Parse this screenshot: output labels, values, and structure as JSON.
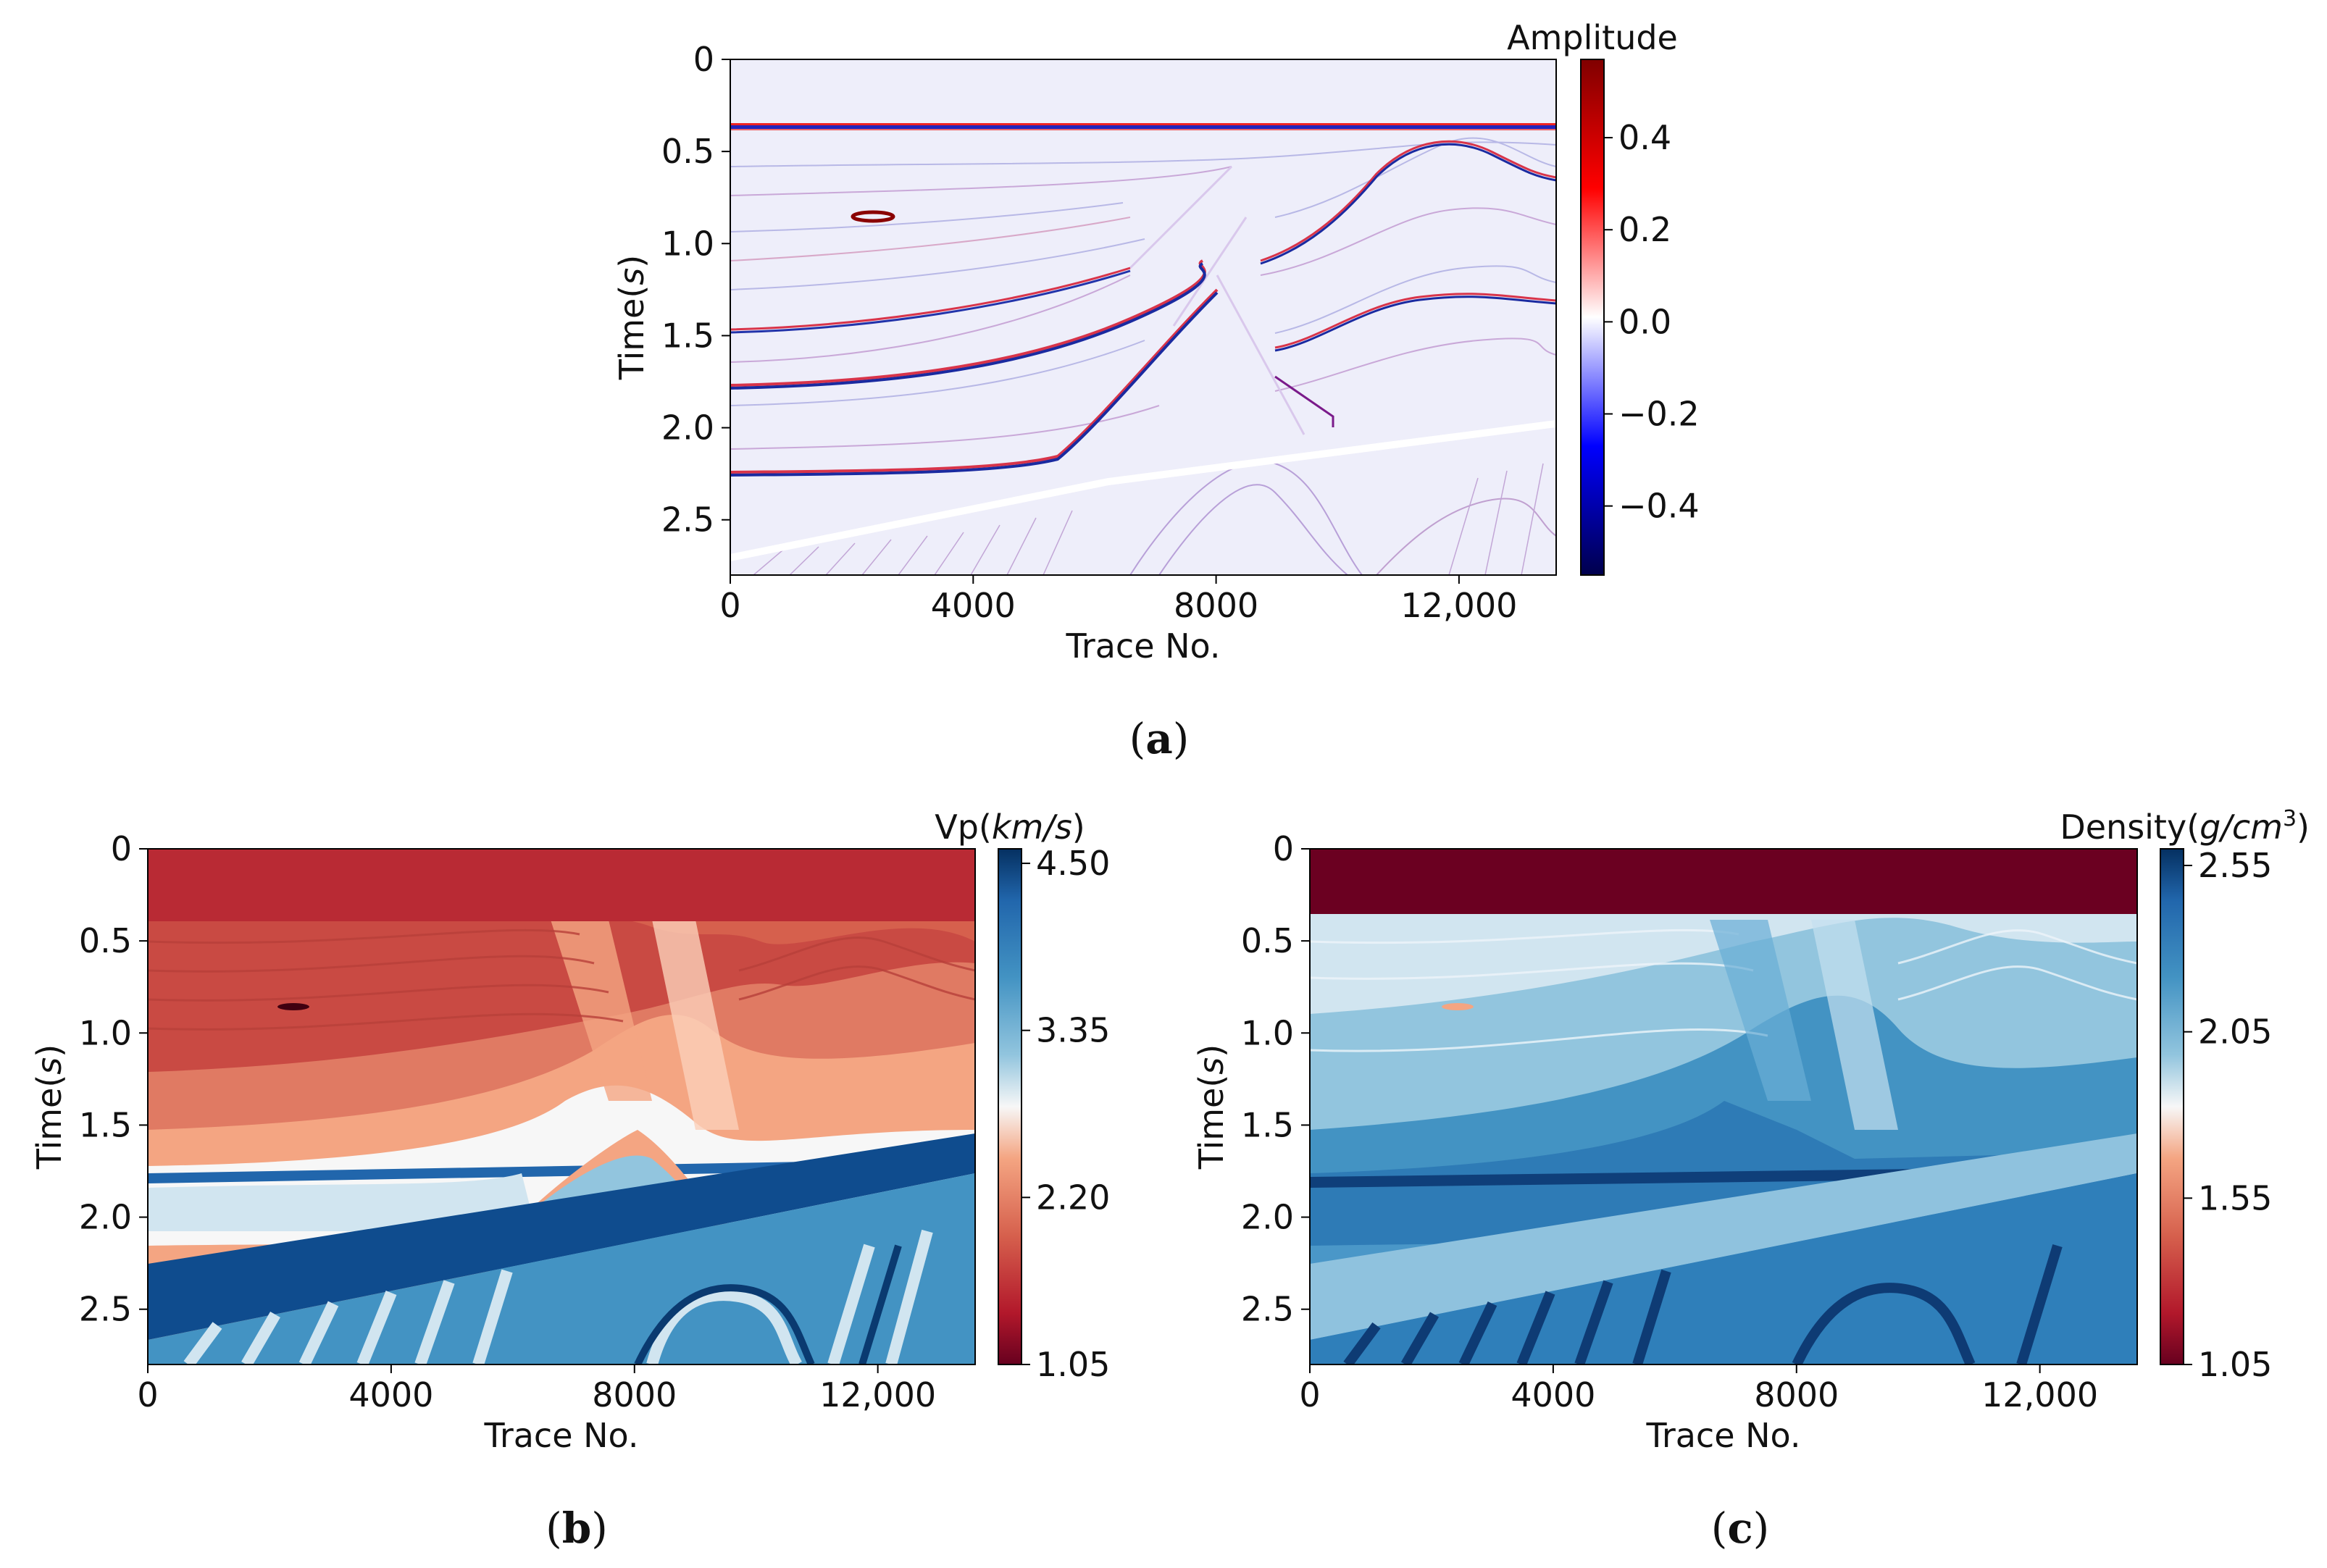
{
  "chart_data": [
    {
      "id": "a",
      "type": "heatmap",
      "caption_letter": "a",
      "xlabel": "Trace No.",
      "ylabel_prefix": "Time(",
      "ylabel_var": "s",
      "ylabel_suffix": ")",
      "xlim": [
        0,
        13600
      ],
      "ylim": [
        2.8,
        0
      ],
      "xticks": [
        0,
        4000,
        8000,
        12000
      ],
      "xtick_labels": [
        "0",
        "4000",
        "8000",
        "12,000"
      ],
      "yticks": [
        0,
        0.5,
        1.0,
        1.5,
        2.0,
        2.5
      ],
      "ytick_labels": [
        "0",
        "0.5",
        "1.0",
        "1.5",
        "2.0",
        "2.5"
      ],
      "colorbar": {
        "title": "Amplitude",
        "colormap": "seismic",
        "vmin": -0.55,
        "vmax": 0.57,
        "ticks": [
          0.4,
          0.2,
          0.0,
          -0.2,
          -0.4
        ],
        "tick_labels": [
          "0.4",
          "0.2",
          "0.0",
          "−0.2",
          "−0.4"
        ]
      },
      "water_bottom_time": 0.36
    },
    {
      "id": "b",
      "type": "heatmap",
      "caption_letter": "b",
      "xlabel": "Trace No.",
      "ylabel_prefix": "Time(",
      "ylabel_var": "s",
      "ylabel_suffix": ")",
      "xlim": [
        0,
        13600
      ],
      "ylim": [
        2.8,
        0
      ],
      "xticks": [
        0,
        4000,
        8000,
        12000
      ],
      "xtick_labels": [
        "0",
        "4000",
        "8000",
        "12,000"
      ],
      "yticks": [
        0,
        0.5,
        1.0,
        1.5,
        2.0,
        2.5
      ],
      "ytick_labels": [
        "0",
        "0.5",
        "1.0",
        "1.5",
        "2.0",
        "2.5"
      ],
      "colorbar": {
        "title_prefix": "Vp(",
        "title_var": "km/s",
        "title_suffix": ")",
        "colormap": "RdBu",
        "vmin": 1.05,
        "vmax": 4.6,
        "ticks": [
          4.5,
          3.35,
          2.2,
          1.05
        ],
        "tick_labels": [
          "4.50",
          "3.35",
          "2.20",
          "1.05"
        ]
      },
      "water_bottom_time": 0.36
    },
    {
      "id": "c",
      "type": "heatmap",
      "caption_letter": "c",
      "xlabel": "Trace No.",
      "ylabel_prefix": "Time(",
      "ylabel_var": "s",
      "ylabel_suffix": ")",
      "xlim": [
        0,
        13600
      ],
      "ylim": [
        2.8,
        0
      ],
      "xticks": [
        0,
        4000,
        8000,
        12000
      ],
      "xtick_labels": [
        "0",
        "4000",
        "8000",
        "12,000"
      ],
      "yticks": [
        0,
        0.5,
        1.0,
        1.5,
        2.0,
        2.5
      ],
      "ytick_labels": [
        "0",
        "0.5",
        "1.0",
        "1.5",
        "2.0",
        "2.5"
      ],
      "colorbar": {
        "title_prefix": "Density(",
        "title_var": "g/cm",
        "title_sup": "3",
        "title_suffix": ")",
        "colormap": "RdBu",
        "vmin": 1.05,
        "vmax": 2.6,
        "ticks": [
          2.55,
          2.05,
          1.55,
          1.05
        ],
        "tick_labels": [
          "2.55",
          "2.05",
          "1.55",
          "1.05"
        ]
      },
      "water_bottom_time": 0.36
    }
  ]
}
